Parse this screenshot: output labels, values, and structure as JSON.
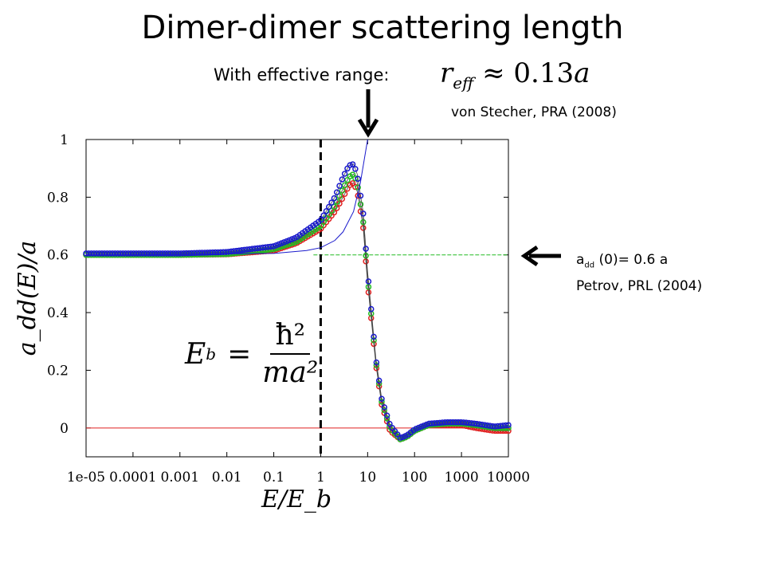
{
  "title": "Dimer-dimer scattering length",
  "subtitle": "With effective range:",
  "effective_range_formula": {
    "symbol": "r",
    "subscript": "eff",
    "relation": "≈ 0.13",
    "unit": "a"
  },
  "ref_von_stecher": "von Stecher, PRA (2008)",
  "ref_petrov": {
    "prefix": "a",
    "sub": "dd",
    "rest": " (0)= 0.6 a",
    "line2": "Petrov, PRL (2004)"
  },
  "eb_formula": {
    "lhs": "E",
    "lhs_sub": "b",
    "eq": "=",
    "numerator": "ħ²",
    "denominator": "ma²"
  },
  "colors": {
    "blue": "#1a1acc",
    "green": "#22bb22",
    "red": "#e02020",
    "black": "#000000"
  },
  "chart_data": {
    "type": "line",
    "xscale": "log",
    "xlim": [
      1e-05,
      10000
    ],
    "ylim": [
      -0.1,
      1.0
    ],
    "xlabel": "E/E_b",
    "ylabel": "a_dd(E)/a",
    "xticks": [
      "1e-05",
      "0.0001",
      "0.001",
      "0.01",
      "0.1",
      "1",
      "10",
      "100",
      "1000",
      "10000"
    ],
    "yticks": [
      "0",
      "0.2",
      "0.4",
      "0.6",
      "0.8",
      "1"
    ],
    "vline_x": 1,
    "hlines": [
      {
        "y": 0.6,
        "color": "green"
      },
      {
        "y": 0.0,
        "color": "red"
      }
    ],
    "series": [
      {
        "x": [
          1e-05,
          0.001,
          0.01,
          0.1,
          0.3,
          1,
          2,
          3,
          4,
          5,
          6,
          8,
          10,
          15,
          20,
          30,
          50,
          70,
          100,
          200,
          500,
          1000,
          2000,
          5000,
          10000
        ],
        "y": [
          0.6,
          0.6,
          0.602,
          0.615,
          0.64,
          0.69,
          0.75,
          0.8,
          0.84,
          0.85,
          0.82,
          0.7,
          0.5,
          0.22,
          0.08,
          -0.01,
          -0.04,
          -0.03,
          -0.01,
          0.01,
          0.01,
          0.01,
          0.0,
          -0.01,
          -0.01
        ],
        "color": "red"
      },
      {
        "x": [
          1e-05,
          0.001,
          0.01,
          0.1,
          0.3,
          1,
          2,
          3,
          4,
          5,
          6,
          8,
          10,
          15,
          20,
          30,
          50,
          70,
          100,
          200,
          500,
          1000,
          2000,
          5000,
          10000
        ],
        "y": [
          0.6,
          0.6,
          0.603,
          0.62,
          0.645,
          0.7,
          0.77,
          0.83,
          0.87,
          0.88,
          0.85,
          0.72,
          0.52,
          0.23,
          0.09,
          0.0,
          -0.04,
          -0.03,
          -0.01,
          0.01,
          0.015,
          0.015,
          0.01,
          0.0,
          0.0
        ],
        "color": "green"
      },
      {
        "x": [
          1e-05,
          0.001,
          0.01,
          0.1,
          0.3,
          1,
          2,
          3,
          4,
          5,
          6,
          8,
          10,
          15,
          20,
          30,
          50,
          70,
          100,
          200,
          500,
          1000,
          2000,
          5000,
          10000
        ],
        "y": [
          0.605,
          0.605,
          0.61,
          0.63,
          0.66,
          0.72,
          0.8,
          0.87,
          0.91,
          0.915,
          0.88,
          0.75,
          0.54,
          0.24,
          0.1,
          0.01,
          -0.035,
          -0.025,
          -0.005,
          0.015,
          0.02,
          0.02,
          0.015,
          0.005,
          0.01
        ],
        "color": "blue"
      },
      {
        "x": [
          1e-05,
          0.1,
          0.5,
          1,
          2,
          3,
          5,
          7,
          10
        ],
        "y": [
          0.6,
          0.605,
          0.615,
          0.625,
          0.65,
          0.68,
          0.75,
          0.85,
          1.0
        ],
        "color": "blue"
      }
    ]
  }
}
